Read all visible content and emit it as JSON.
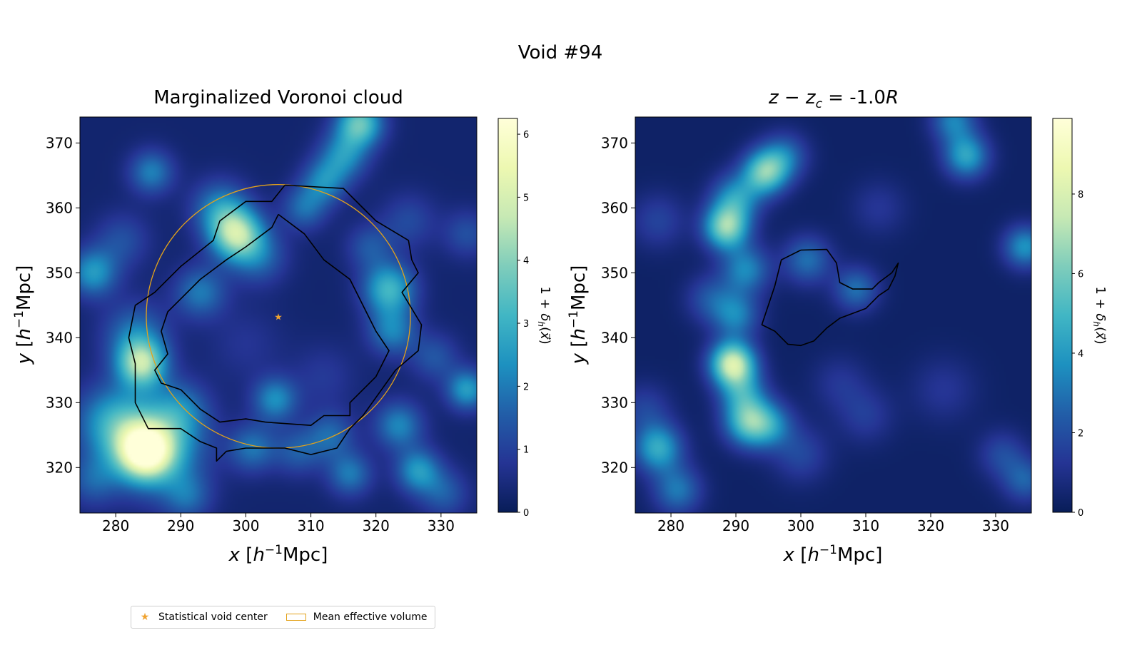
{
  "figure": {
    "suptitle": "Void #94"
  },
  "legend": {
    "items": [
      {
        "label": "Statistical void center",
        "marker": "star",
        "color": "#f0a330"
      },
      {
        "label": "Mean effective volume",
        "marker": "rect-outline",
        "color": "#e3a21a"
      }
    ]
  },
  "colors": {
    "colormap": [
      "#081d58",
      "#253494",
      "#225ea8",
      "#1d91c0",
      "#41b6c4",
      "#7fcdbb",
      "#c7e9b4",
      "#edf8b1",
      "#ffffd9"
    ],
    "contour": "#000000",
    "circle": "#e3a21a",
    "star": "#f0a330"
  },
  "chart_data": [
    {
      "type": "heatmap",
      "panel": "left",
      "title": "Marginalized Voronoi cloud",
      "xlabel": "x [h⁻¹Mpc]",
      "ylabel": "y [h⁻¹Mpc]",
      "xlim": [
        274.5,
        335.5
      ],
      "ylim": [
        313,
        374
      ],
      "xticks": [
        280,
        290,
        300,
        310,
        320,
        330
      ],
      "yticks": [
        320,
        330,
        340,
        350,
        360,
        370
      ],
      "colorbar": {
        "label": "1 + δh(x⃗)",
        "min": 0,
        "max": 6.25,
        "ticks": [
          0,
          1,
          2,
          3,
          4,
          5,
          6
        ]
      },
      "density_blobs": [
        {
          "x": 284.5,
          "y": 322.5,
          "amp": 5.0,
          "r": 3.0
        },
        {
          "x": 286.5,
          "y": 323.5,
          "amp": 2.5,
          "r": 5.0
        },
        {
          "x": 284.0,
          "y": 336.0,
          "amp": 3.8,
          "r": 2.6
        },
        {
          "x": 279.5,
          "y": 327.0,
          "amp": 2.2,
          "r": 4.0
        },
        {
          "x": 283.0,
          "y": 340.5,
          "amp": 1.6,
          "r": 3.5
        },
        {
          "x": 290.0,
          "y": 329.0,
          "amp": 1.3,
          "r": 3.0
        },
        {
          "x": 298.5,
          "y": 356.0,
          "amp": 4.0,
          "r": 2.8
        },
        {
          "x": 296.0,
          "y": 360.0,
          "amp": 1.8,
          "r": 3.0
        },
        {
          "x": 302.0,
          "y": 352.5,
          "amp": 1.4,
          "r": 3.0
        },
        {
          "x": 293.0,
          "y": 347.0,
          "amp": 1.7,
          "r": 2.8
        },
        {
          "x": 276.5,
          "y": 350.0,
          "amp": 2.2,
          "r": 2.6
        },
        {
          "x": 281.0,
          "y": 355.0,
          "amp": 1.0,
          "r": 3.0
        },
        {
          "x": 285.5,
          "y": 365.5,
          "amp": 1.8,
          "r": 2.4
        },
        {
          "x": 317.5,
          "y": 373.0,
          "amp": 3.3,
          "r": 2.5
        },
        {
          "x": 315.0,
          "y": 368.0,
          "amp": 2.0,
          "r": 2.6
        },
        {
          "x": 312.0,
          "y": 364.0,
          "amp": 1.8,
          "r": 2.4
        },
        {
          "x": 309.0,
          "y": 360.0,
          "amp": 1.5,
          "r": 2.4
        },
        {
          "x": 322.0,
          "y": 347.5,
          "amp": 2.8,
          "r": 2.8
        },
        {
          "x": 322.5,
          "y": 341.0,
          "amp": 1.8,
          "r": 2.6
        },
        {
          "x": 319.0,
          "y": 354.0,
          "amp": 1.1,
          "r": 2.5
        },
        {
          "x": 325.0,
          "y": 358.0,
          "amp": 0.9,
          "r": 3.0
        },
        {
          "x": 304.5,
          "y": 330.5,
          "amp": 2.0,
          "r": 2.4
        },
        {
          "x": 301.0,
          "y": 323.0,
          "amp": 1.6,
          "r": 2.6
        },
        {
          "x": 308.0,
          "y": 322.5,
          "amp": 1.2,
          "r": 2.6
        },
        {
          "x": 313.0,
          "y": 325.0,
          "amp": 1.4,
          "r": 2.6
        },
        {
          "x": 316.0,
          "y": 319.0,
          "amp": 1.7,
          "r": 2.4
        },
        {
          "x": 323.5,
          "y": 326.5,
          "amp": 1.9,
          "r": 2.6
        },
        {
          "x": 326.5,
          "y": 319.5,
          "amp": 2.2,
          "r": 2.4
        },
        {
          "x": 330.5,
          "y": 316.0,
          "amp": 1.2,
          "r": 2.6
        },
        {
          "x": 334.0,
          "y": 332.0,
          "amp": 2.3,
          "r": 2.2
        },
        {
          "x": 329.0,
          "y": 337.0,
          "amp": 1.1,
          "r": 2.6
        },
        {
          "x": 291.0,
          "y": 315.5,
          "amp": 1.3,
          "r": 2.6
        },
        {
          "x": 276.5,
          "y": 318.0,
          "amp": 1.2,
          "r": 2.8
        },
        {
          "x": 334.0,
          "y": 356.0,
          "amp": 1.0,
          "r": 2.6
        },
        {
          "x": 300.0,
          "y": 339.0,
          "amp": 0.5,
          "r": 4.0
        },
        {
          "x": 312.0,
          "y": 334.0,
          "amp": 0.6,
          "r": 3.5
        }
      ],
      "contours": [
        [
          [
            306,
            363.5
          ],
          [
            315,
            363
          ],
          [
            320,
            358
          ],
          [
            325,
            355
          ],
          [
            325.5,
            352
          ],
          [
            326.5,
            350
          ],
          [
            324,
            347
          ],
          [
            327,
            342
          ],
          [
            326.5,
            338
          ],
          [
            323,
            335
          ],
          [
            318,
            328
          ],
          [
            316,
            326
          ],
          [
            314,
            323
          ],
          [
            310,
            322
          ],
          [
            306,
            323
          ],
          [
            300,
            323
          ],
          [
            297,
            322.5
          ],
          [
            295.5,
            321
          ],
          [
            295.5,
            323
          ],
          [
            293,
            324
          ],
          [
            290,
            326
          ],
          [
            285,
            326
          ],
          [
            283,
            330
          ],
          [
            283,
            336
          ],
          [
            282,
            340
          ],
          [
            283,
            345
          ],
          [
            286,
            347
          ],
          [
            290,
            351
          ],
          [
            295,
            355
          ],
          [
            296,
            358
          ],
          [
            300,
            361
          ],
          [
            304,
            361
          ],
          [
            306,
            363.5
          ]
        ],
        [
          [
            305,
            359
          ],
          [
            309,
            356
          ],
          [
            312,
            352
          ],
          [
            316,
            349
          ],
          [
            318,
            345
          ],
          [
            320,
            341
          ],
          [
            322,
            338
          ],
          [
            320,
            334
          ],
          [
            316,
            330
          ],
          [
            316,
            328
          ],
          [
            312,
            328
          ],
          [
            310,
            326.5
          ],
          [
            303,
            327
          ],
          [
            300,
            327.5
          ],
          [
            296,
            327
          ],
          [
            293,
            329
          ],
          [
            290,
            332
          ],
          [
            287,
            333
          ],
          [
            286,
            335
          ],
          [
            288,
            337.5
          ],
          [
            287,
            341
          ],
          [
            288,
            344
          ],
          [
            290,
            346
          ],
          [
            293,
            349
          ],
          [
            297,
            352
          ],
          [
            300,
            354
          ],
          [
            304,
            357
          ],
          [
            305,
            359
          ]
        ]
      ],
      "circle": {
        "cx": 305.0,
        "cy": 343.3,
        "r": 20.3
      },
      "center": {
        "x": 305.0,
        "y": 343.3
      }
    },
    {
      "type": "heatmap",
      "panel": "right",
      "title": "z − z_c = -1.0R",
      "title_parts": {
        "lhs": "z − z",
        "sub": "c",
        "eq": " = -1.0",
        "unit": "R"
      },
      "xlabel": "x [h⁻¹Mpc]",
      "ylabel": "y [h⁻¹Mpc]",
      "xlim": [
        274.5,
        335.5
      ],
      "ylim": [
        313,
        374
      ],
      "xticks": [
        280,
        290,
        300,
        310,
        320,
        330
      ],
      "yticks": [
        320,
        330,
        340,
        350,
        360,
        370
      ],
      "colorbar": {
        "label": "1 + δh(x⃗)",
        "min": 0,
        "max": 9.9,
        "ticks": [
          0,
          2,
          4,
          6,
          8
        ]
      },
      "density_blobs": [
        {
          "x": 289.5,
          "y": 336.0,
          "amp": 7.5,
          "r": 2.4
        },
        {
          "x": 292.0,
          "y": 327.0,
          "amp": 5.0,
          "r": 2.6
        },
        {
          "x": 288.5,
          "y": 357.0,
          "amp": 6.0,
          "r": 2.4
        },
        {
          "x": 294.5,
          "y": 365.5,
          "amp": 5.5,
          "r": 2.4
        },
        {
          "x": 290.0,
          "y": 361.5,
          "amp": 3.5,
          "r": 2.6
        },
        {
          "x": 297.5,
          "y": 368.0,
          "amp": 2.5,
          "r": 2.5
        },
        {
          "x": 291.5,
          "y": 350.5,
          "amp": 3.2,
          "r": 2.6
        },
        {
          "x": 290.0,
          "y": 343.5,
          "amp": 3.0,
          "r": 2.5
        },
        {
          "x": 291.0,
          "y": 331.5,
          "amp": 3.0,
          "r": 2.5
        },
        {
          "x": 295.5,
          "y": 326.5,
          "amp": 2.6,
          "r": 2.5
        },
        {
          "x": 301.0,
          "y": 352.0,
          "amp": 2.6,
          "r": 2.6
        },
        {
          "x": 308.5,
          "y": 347.5,
          "amp": 2.6,
          "r": 2.4
        },
        {
          "x": 278.0,
          "y": 323.0,
          "amp": 4.2,
          "r": 2.6
        },
        {
          "x": 281.0,
          "y": 316.5,
          "amp": 2.8,
          "r": 2.6
        },
        {
          "x": 276.0,
          "y": 329.0,
          "amp": 1.4,
          "r": 2.8
        },
        {
          "x": 325.5,
          "y": 368.0,
          "amp": 4.0,
          "r": 2.4
        },
        {
          "x": 323.5,
          "y": 373.5,
          "amp": 3.0,
          "r": 2.4
        },
        {
          "x": 334.5,
          "y": 354.0,
          "amp": 3.5,
          "r": 2.3
        },
        {
          "x": 334.5,
          "y": 318.0,
          "amp": 2.2,
          "r": 2.4
        },
        {
          "x": 331.0,
          "y": 322.0,
          "amp": 1.6,
          "r": 2.6
        },
        {
          "x": 286.0,
          "y": 346.0,
          "amp": 1.8,
          "r": 2.6
        },
        {
          "x": 300.0,
          "y": 322.0,
          "amp": 1.5,
          "r": 3.0
        },
        {
          "x": 310.0,
          "y": 328.0,
          "amp": 1.2,
          "r": 3.0
        },
        {
          "x": 306.0,
          "y": 333.0,
          "amp": 1.0,
          "r": 3.0
        },
        {
          "x": 322.0,
          "y": 332.0,
          "amp": 1.0,
          "r": 3.5
        },
        {
          "x": 278.0,
          "y": 358.0,
          "amp": 1.4,
          "r": 3.0
        },
        {
          "x": 312.0,
          "y": 360.0,
          "amp": 1.0,
          "r": 3.0
        }
      ],
      "contours": [
        [
          [
            300,
            353.5
          ],
          [
            304,
            353.6
          ],
          [
            305.5,
            351.5
          ],
          [
            306,
            348.5
          ],
          [
            308,
            347.5
          ],
          [
            311,
            347.5
          ],
          [
            312,
            348.5
          ],
          [
            314,
            350
          ],
          [
            315,
            351.5
          ],
          [
            314.5,
            349.5
          ],
          [
            313.5,
            347.5
          ],
          [
            312,
            346.5
          ],
          [
            310,
            344.5
          ],
          [
            306,
            343
          ],
          [
            304,
            341.5
          ],
          [
            302,
            339.5
          ],
          [
            300,
            338.8
          ],
          [
            298,
            339
          ],
          [
            296,
            341
          ],
          [
            294,
            342
          ],
          [
            295,
            345
          ],
          [
            296,
            348
          ],
          [
            297,
            352
          ],
          [
            300,
            353.5
          ]
        ]
      ]
    }
  ]
}
